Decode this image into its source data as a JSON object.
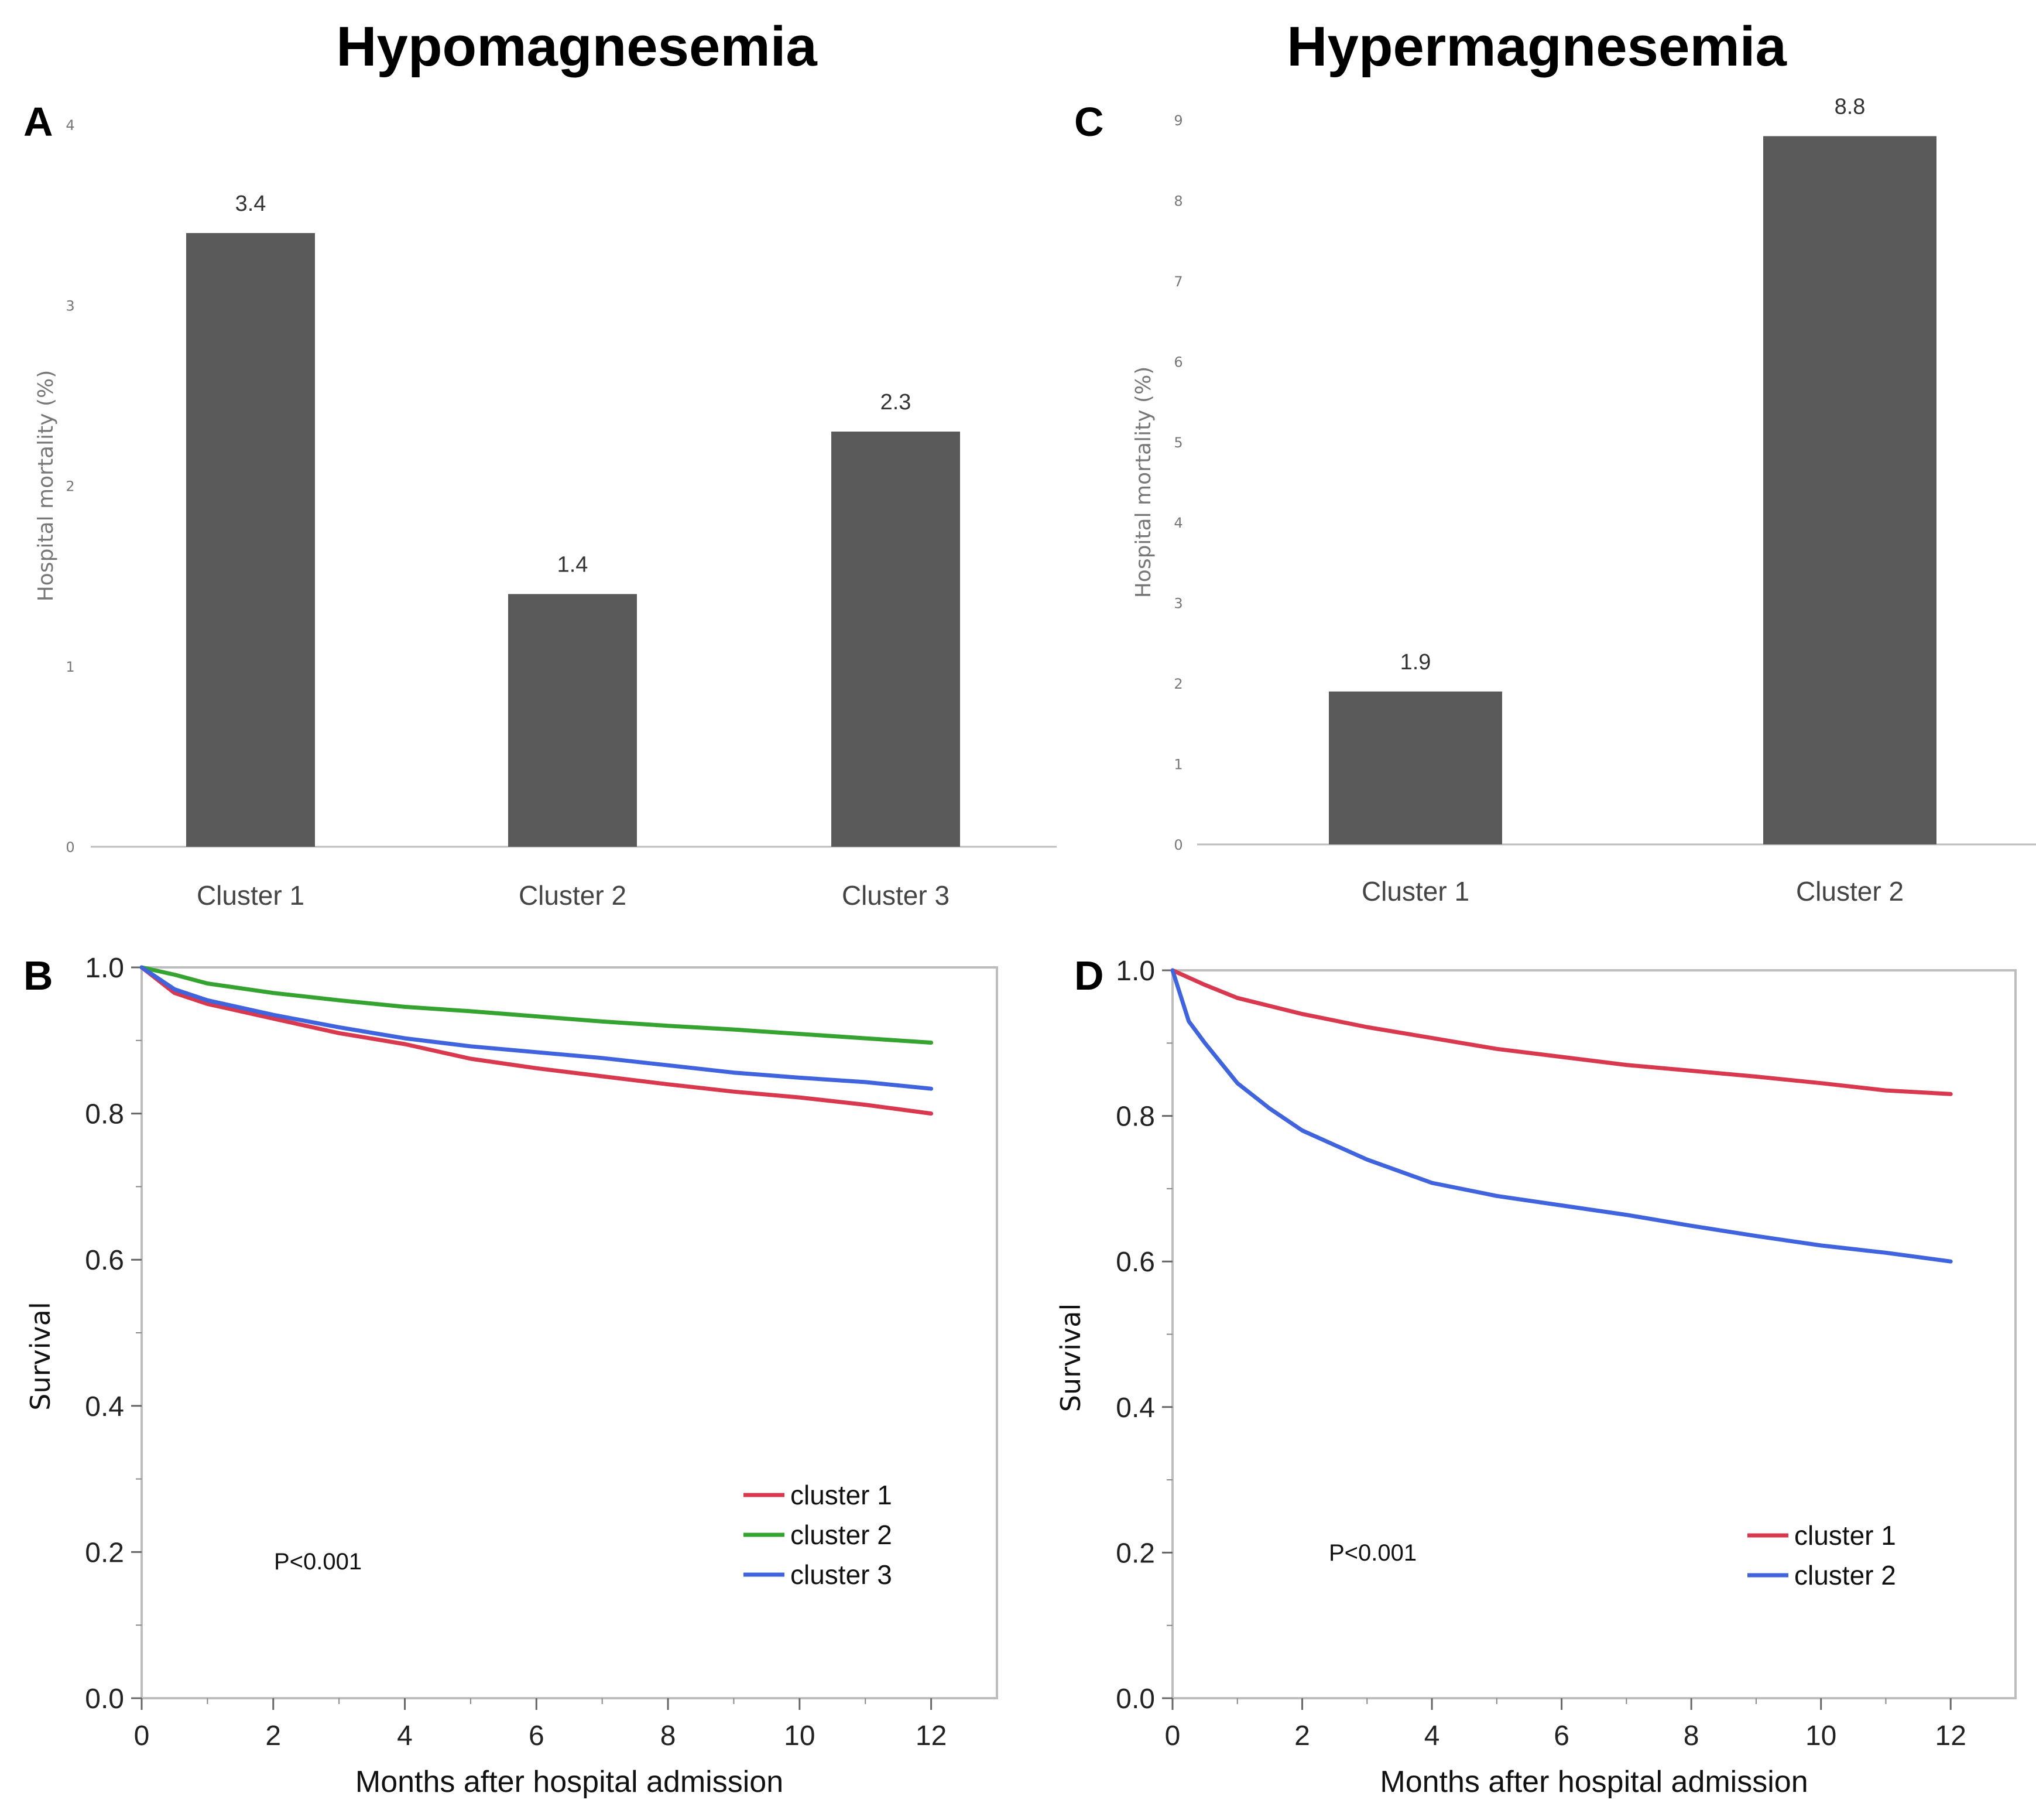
{
  "titles": {
    "left": "Hypomagnesemia",
    "right": "Hypermagnesemia"
  },
  "panel_letters": {
    "a": "A",
    "b": "B",
    "c": "C",
    "d": "D"
  },
  "colors": {
    "bar": "#5a5a5a",
    "cluster1": "#d9394f",
    "cluster2_green": "#35a32f",
    "cluster3_blue": "#3f64dd",
    "axis": "#bdbdbd"
  },
  "chart_data": [
    {
      "id": "A",
      "type": "bar",
      "title": "Hypomagnesemia",
      "ylabel": "Hospital mortality (%)",
      "categories": [
        "Cluster 1",
        "Cluster 2",
        "Cluster 3"
      ],
      "values": [
        3.4,
        1.4,
        2.3
      ],
      "value_labels": [
        "3.4",
        "1.4",
        "2.3"
      ],
      "ylim": [
        0,
        4
      ],
      "yticks": [
        "0",
        "1",
        "2",
        "3",
        "4"
      ]
    },
    {
      "id": "B",
      "type": "line",
      "ylabel": "Survival",
      "xlabel": "Months after hospital admission",
      "xlim": [
        0,
        13
      ],
      "ylim": [
        0,
        1
      ],
      "xticks": [
        "0",
        "2",
        "4",
        "6",
        "8",
        "10",
        "12"
      ],
      "yticks": [
        "0.0",
        "0.2",
        "0.4",
        "0.6",
        "0.8",
        "1.0"
      ],
      "annotation": "P<0.001",
      "legend": [
        "cluster 1",
        "cluster 2",
        "cluster 3"
      ],
      "series": [
        {
          "name": "cluster 1",
          "color": "#d9394f",
          "x": [
            0,
            0.5,
            1,
            2,
            3,
            4,
            5,
            6,
            7,
            8,
            9,
            10,
            11,
            12
          ],
          "y": [
            1.0,
            0.965,
            0.95,
            0.93,
            0.91,
            0.895,
            0.875,
            0.862,
            0.851,
            0.84,
            0.83,
            0.822,
            0.812,
            0.8
          ]
        },
        {
          "name": "cluster 2",
          "color": "#35a32f",
          "x": [
            0,
            0.5,
            1,
            2,
            3,
            4,
            5,
            6,
            7,
            8,
            9,
            10,
            11,
            12
          ],
          "y": [
            1.0,
            0.99,
            0.978,
            0.965,
            0.955,
            0.946,
            0.94,
            0.933,
            0.926,
            0.92,
            0.915,
            0.909,
            0.903,
            0.897
          ]
        },
        {
          "name": "cluster 3",
          "color": "#3f64dd",
          "x": [
            0,
            0.5,
            1,
            2,
            3,
            4,
            5,
            6,
            7,
            8,
            9,
            10,
            11,
            12
          ],
          "y": [
            1.0,
            0.97,
            0.955,
            0.935,
            0.918,
            0.903,
            0.892,
            0.884,
            0.876,
            0.866,
            0.856,
            0.849,
            0.843,
            0.834
          ]
        }
      ]
    },
    {
      "id": "C",
      "type": "bar",
      "title": "Hypermagnesemia",
      "ylabel": "Hospital mortality (%)",
      "categories": [
        "Cluster 1",
        "Cluster 2"
      ],
      "values": [
        1.9,
        8.8
      ],
      "value_labels": [
        "1.9",
        "8.8"
      ],
      "ylim": [
        0,
        9
      ],
      "yticks": [
        "0",
        "1",
        "2",
        "3",
        "4",
        "5",
        "6",
        "7",
        "8",
        "9"
      ]
    },
    {
      "id": "D",
      "type": "line",
      "ylabel": "Survival",
      "xlabel": "Months after hospital admission",
      "xlim": [
        0,
        13
      ],
      "ylim": [
        0,
        1
      ],
      "xticks": [
        "0",
        "2",
        "4",
        "6",
        "8",
        "10",
        "12"
      ],
      "yticks": [
        "0.0",
        "0.2",
        "0.4",
        "0.6",
        "0.8",
        "1.0"
      ],
      "annotation": "P<0.001",
      "legend": [
        "cluster 1",
        "cluster 2"
      ],
      "series": [
        {
          "name": "cluster 1",
          "color": "#d9394f",
          "x": [
            0,
            0.5,
            1,
            2,
            3,
            4,
            5,
            6,
            7,
            8,
            9,
            10,
            11,
            12
          ],
          "y": [
            1.0,
            0.98,
            0.962,
            0.94,
            0.922,
            0.907,
            0.892,
            0.881,
            0.87,
            0.862,
            0.854,
            0.845,
            0.835,
            0.83
          ]
        },
        {
          "name": "cluster 2",
          "color": "#3f64dd",
          "x": [
            0,
            0.25,
            0.5,
            1,
            1.5,
            2,
            3,
            4,
            5,
            6,
            7,
            8,
            9,
            10,
            11,
            12
          ],
          "y": [
            1.0,
            0.93,
            0.9,
            0.845,
            0.81,
            0.78,
            0.74,
            0.708,
            0.69,
            0.677,
            0.664,
            0.649,
            0.635,
            0.622,
            0.612,
            0.6
          ]
        }
      ]
    }
  ]
}
